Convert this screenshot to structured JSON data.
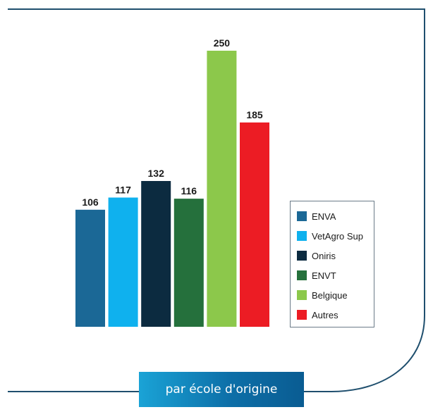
{
  "chart_data": {
    "type": "bar",
    "categories": [
      "ENVA",
      "VetAgro Sup",
      "Oniris",
      "ENVT",
      "Belgique",
      "Autres"
    ],
    "values": [
      106,
      117,
      132,
      116,
      250,
      185
    ],
    "colors": [
      "#1b6896",
      "#0fb1ee",
      "#0c2b40",
      "#25703c",
      "#8cc84b",
      "#ec1c24"
    ],
    "ylim": [
      0,
      250
    ],
    "grid": false,
    "legend_placement": "right",
    "legend": [
      "ENVA",
      "VetAgro Sup",
      "Oniris",
      "ENVT",
      "Belgique",
      "Autres"
    ]
  },
  "caption": "par école d'origine",
  "frame_color": "#1f4f6e"
}
